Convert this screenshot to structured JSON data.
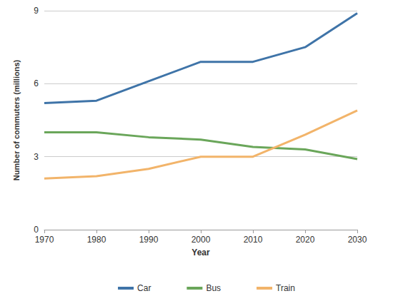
{
  "chart_data": {
    "type": "line",
    "x_label": "Year",
    "y_label": "Number of commuters (millions)",
    "x": [
      1970,
      1980,
      1990,
      2000,
      2010,
      2020,
      2030
    ],
    "xlim": [
      1970,
      2030
    ],
    "xticks": [
      1970,
      1980,
      1990,
      2000,
      2010,
      2020,
      2030
    ],
    "ylim": [
      0,
      9
    ],
    "yticks": [
      0,
      3,
      6,
      9
    ],
    "grid": true,
    "legend": "bottom",
    "series": [
      {
        "name": "Car",
        "color": "#3f74a8",
        "values": [
          5.2,
          5.3,
          6.1,
          6.9,
          6.9,
          7.5,
          8.9
        ]
      },
      {
        "name": "Bus",
        "color": "#6aa65a",
        "values": [
          4.0,
          4.0,
          3.8,
          3.7,
          3.4,
          3.3,
          2.9
        ]
      },
      {
        "name": "Train",
        "color": "#f2b46a",
        "values": [
          2.1,
          2.2,
          2.5,
          3.0,
          3.0,
          3.9,
          4.9
        ]
      }
    ]
  }
}
